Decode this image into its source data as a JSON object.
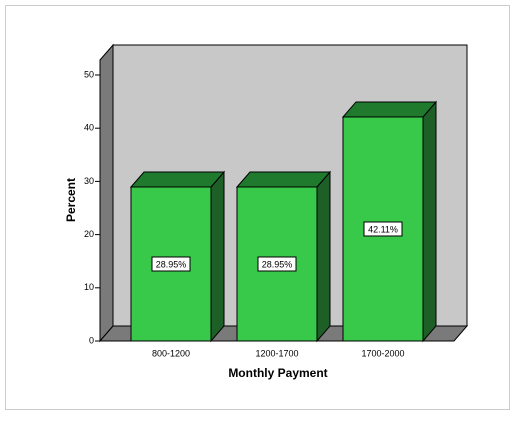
{
  "chart_data": {
    "type": "bar3d",
    "x_label": "Monthly Payment",
    "y_label": "Percent",
    "categories": [
      "800-1200",
      "1200-1700",
      "1700-2000"
    ],
    "values": [
      28.95,
      28.95,
      42.11
    ],
    "value_labels": [
      "28.95%",
      "28.95%",
      "42.11%"
    ],
    "color": "#39c94a",
    "ylim": [
      0,
      50
    ],
    "yticks": [
      0,
      10,
      20,
      30,
      40,
      50
    ]
  }
}
